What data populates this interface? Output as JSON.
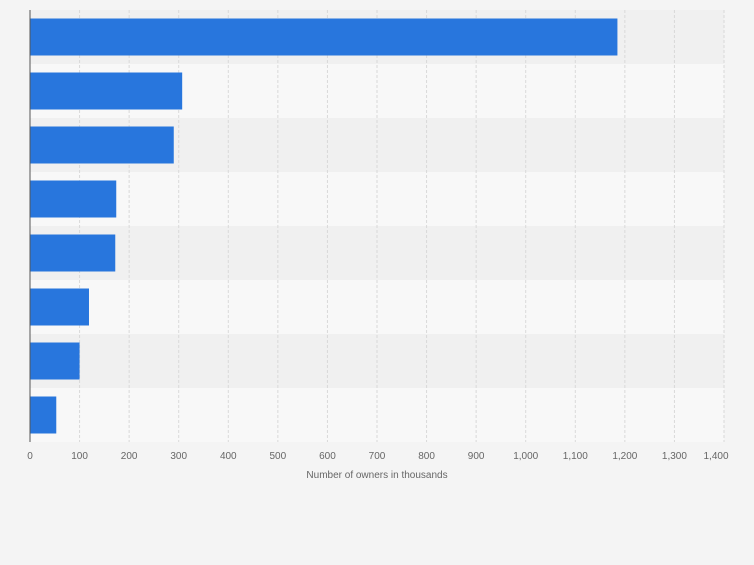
{
  "chart_data": {
    "type": "bar",
    "orientation": "horizontal",
    "title": "",
    "categories": [
      "",
      "",
      "",
      "",
      "",
      "",
      "",
      ""
    ],
    "values": [
      1185,
      307,
      290,
      174,
      172,
      119,
      100,
      53
    ],
    "xlabel": "Number of owners in thousands",
    "ylabel": "",
    "xlim": [
      0,
      1400
    ],
    "xticks": [
      0,
      100,
      200,
      300,
      400,
      500,
      600,
      700,
      800,
      900,
      1000,
      1100,
      1200,
      1300,
      1400
    ],
    "xtick_labels": [
      "0",
      "100",
      "200",
      "300",
      "400",
      "500",
      "600",
      "700",
      "800",
      "900",
      "1,000",
      "1,100",
      "1,200",
      "1,300",
      "1,400"
    ],
    "grid": true,
    "legend": "none",
    "colors": {
      "bar": "#2876dd",
      "band_dark": "#f0f0f0",
      "band_light": "#f8f8f8",
      "grid": "#d9d9d9",
      "axis": "#555555",
      "text": "#666666"
    }
  }
}
